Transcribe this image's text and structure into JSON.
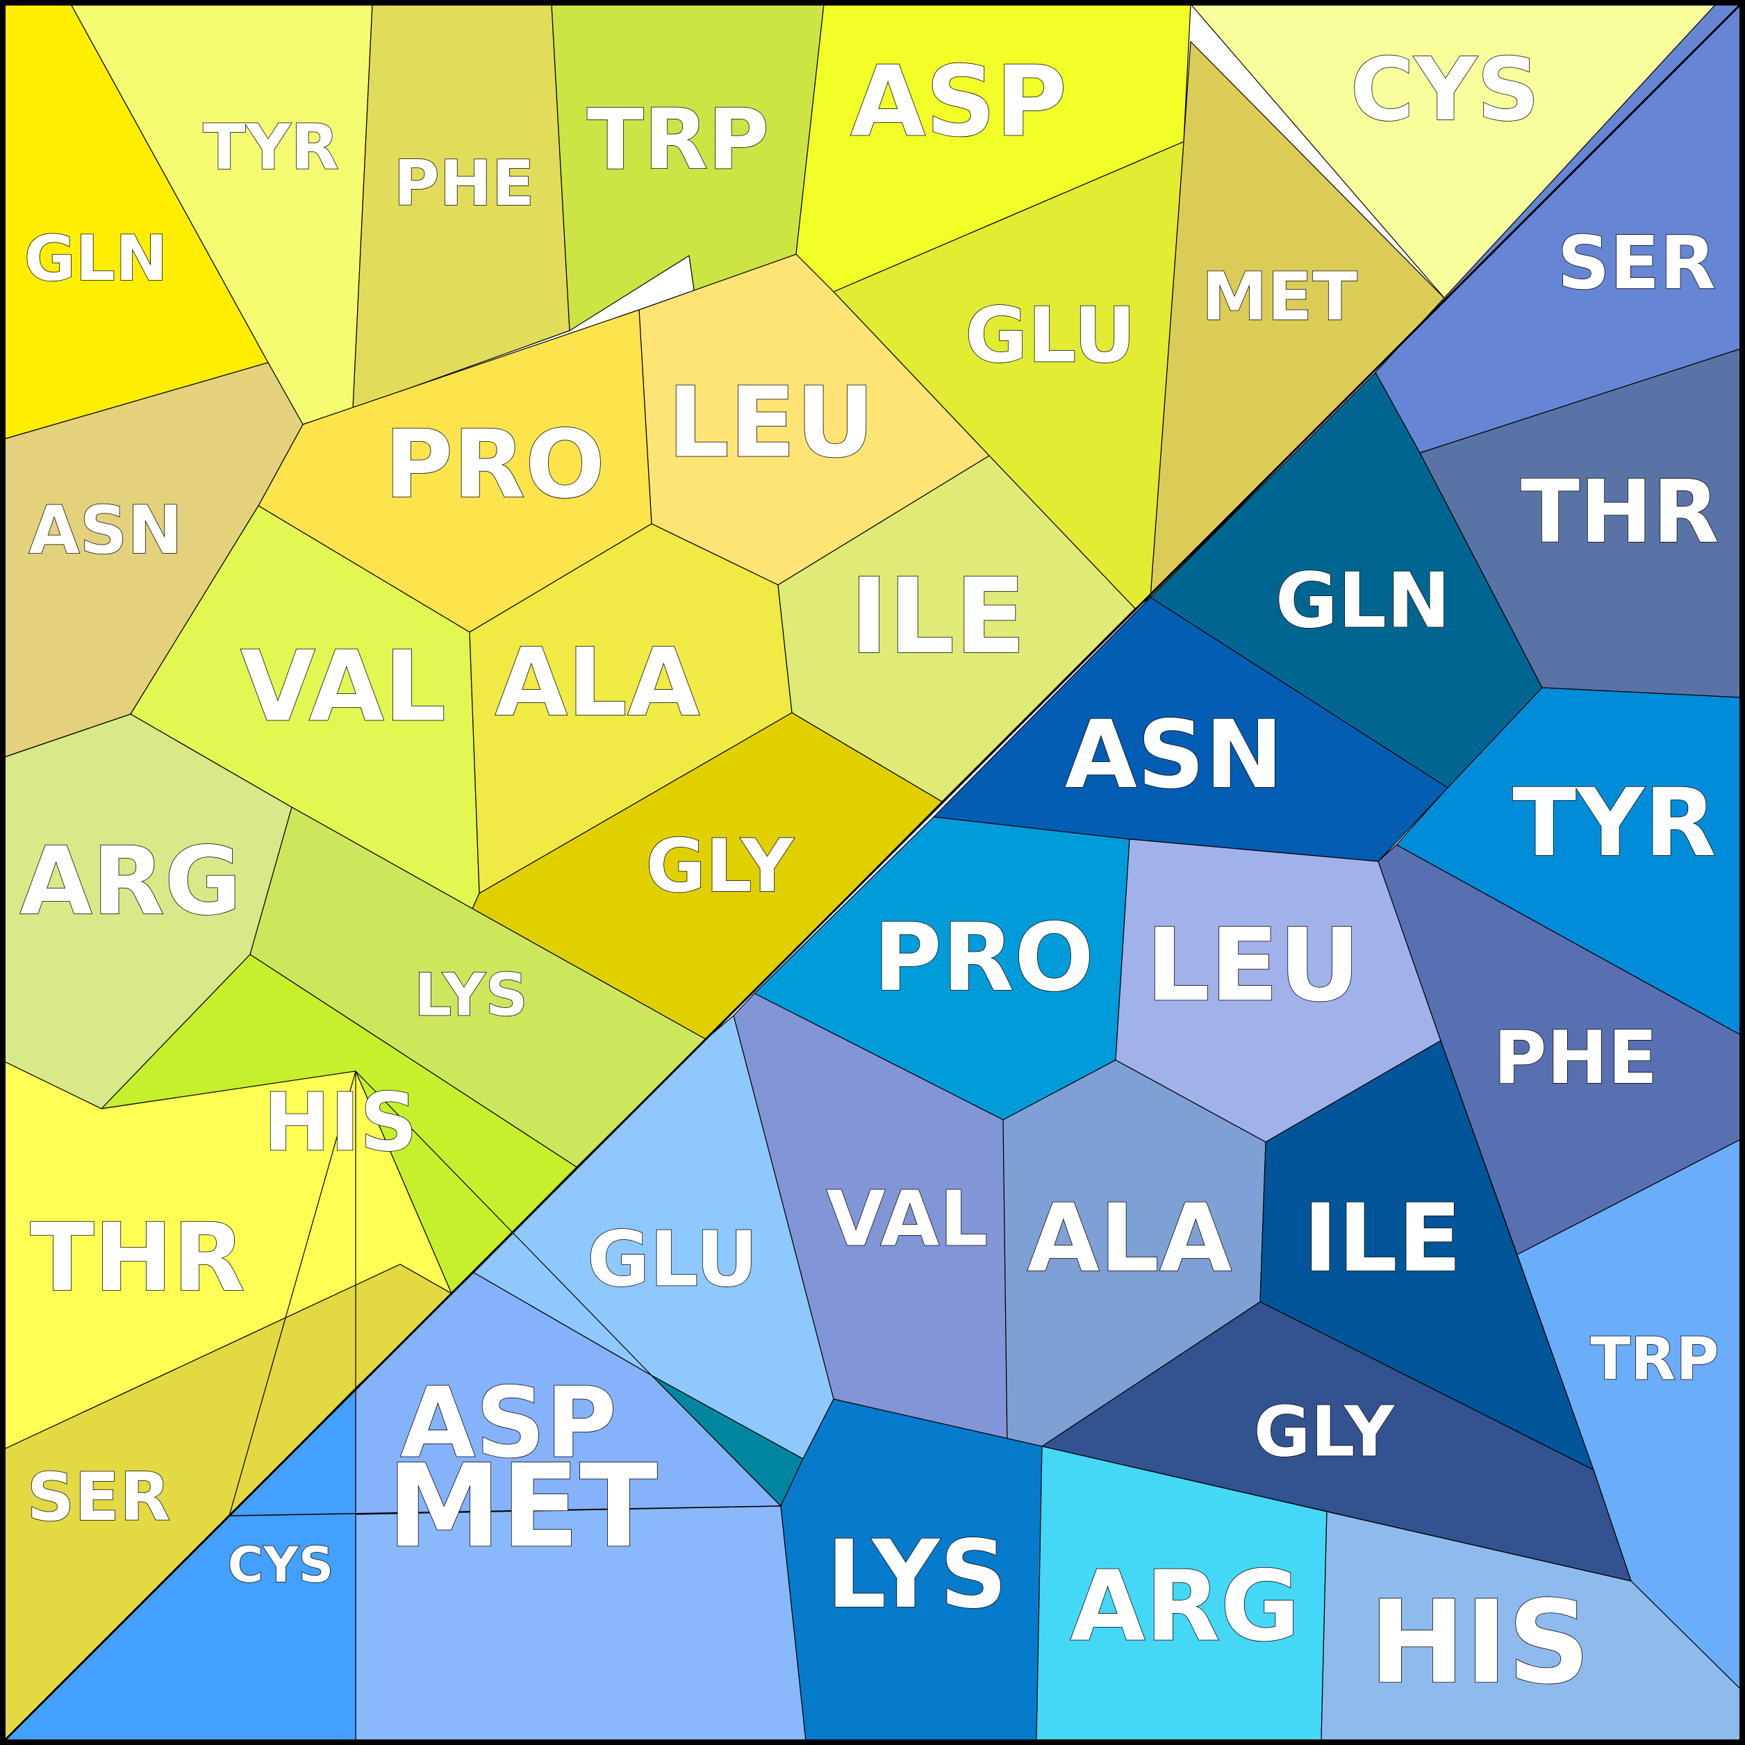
{
  "colors": {
    "frame": "#000000",
    "label": "#ffffff"
  },
  "yellow_cells": [
    {
      "label": "GLN",
      "color": "#ffee00"
    },
    {
      "label": "TYR",
      "color": "#f5fc72"
    },
    {
      "label": "PHE",
      "color": "#e2dc5b"
    },
    {
      "label": "TRP",
      "color": "#cce444"
    },
    {
      "label": "ASP",
      "color": "#f2fe28"
    },
    {
      "label": "CYS",
      "color": "#f8fe9c"
    },
    {
      "label": "MET",
      "color": "#dbcc58"
    },
    {
      "label": "GLU",
      "color": "#e1ec33"
    },
    {
      "label": "LEU",
      "color": "#fde474"
    },
    {
      "label": "PRO",
      "color": "#fee44c"
    },
    {
      "label": "ASN",
      "color": "#e3d17c"
    },
    {
      "label": "VAL",
      "color": "#e3f752"
    },
    {
      "label": "ALA",
      "color": "#efea44"
    },
    {
      "label": "ILE",
      "color": "#e0ea76"
    },
    {
      "label": "GLY",
      "color": "#e0d000"
    },
    {
      "label": "ARG",
      "color": "#d9e888"
    },
    {
      "label": "LYS",
      "color": "#cde75d"
    },
    {
      "label": "HIS",
      "color": "#c6f02b"
    },
    {
      "label": "THR",
      "color": "#fffe55"
    },
    {
      "label": "SER",
      "color": "#e2d943"
    }
  ],
  "blue_cells": [
    {
      "label": "SER",
      "color": "#6685d5"
    },
    {
      "label": "THR",
      "color": "#5a73a6"
    },
    {
      "label": "GLN",
      "color": "#006691"
    },
    {
      "label": "ASN",
      "color": "#025db3"
    },
    {
      "label": "TYR",
      "color": "#008cd9"
    },
    {
      "label": "PRO",
      "color": "#009cda"
    },
    {
      "label": "LEU",
      "color": "#a1b1ea"
    },
    {
      "label": "PHE",
      "color": "#5870b1"
    },
    {
      "label": "VAL",
      "color": "#8295d6"
    },
    {
      "label": "ALA",
      "color": "#7fa0d4"
    },
    {
      "label": "ILE",
      "color": "#005698"
    },
    {
      "label": "GLU",
      "color": "#8fc8fc"
    },
    {
      "label": "TRP",
      "color": "#6aadfa"
    },
    {
      "label": "GLY",
      "color": "#335390"
    },
    {
      "label": "ASP",
      "color": "#86b2fc"
    },
    {
      "label": "MET",
      "color": "#89b8fc"
    },
    {
      "label": "CYS",
      "color": "#44a0fe"
    },
    {
      "label": "LYS",
      "color": "#067bcb"
    },
    {
      "label": "ARG",
      "color": "#44d8f6"
    },
    {
      "label": "HIS",
      "color": "#8fbaed"
    }
  ]
}
